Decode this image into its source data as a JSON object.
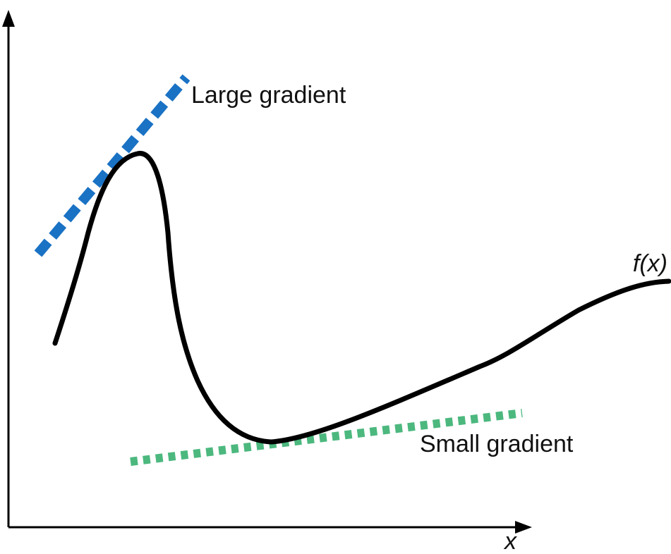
{
  "diagram": {
    "labels": {
      "large_gradient": "Large gradient",
      "small_gradient": "Small gradient",
      "function": "f(x)",
      "x_axis": "x"
    },
    "colors": {
      "curve": "#000000",
      "axes": "#000000",
      "large_gradient": "#1a72c4",
      "small_gradient": "#4cb87e"
    }
  }
}
